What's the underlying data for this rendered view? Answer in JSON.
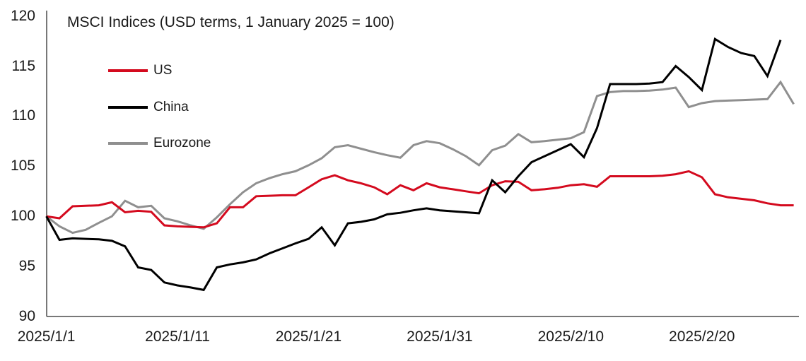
{
  "chart_data": {
    "type": "line",
    "title": "MSCI Indices (USD terms, 1 January 2025 = 100)",
    "grid": false,
    "legend_position": "inside-top-left",
    "background_color": "#ffffff",
    "text_color": "#191919",
    "axis_color": "#4c4c4c",
    "y_axis": {
      "min": 90,
      "max": 120,
      "step": 5,
      "ticks": [
        120,
        115,
        110,
        105,
        100,
        95,
        90
      ]
    },
    "x_axis": {
      "tick_labels": [
        "2025/1/1",
        "2025/1/11",
        "2025/1/21",
        "2025/1/31",
        "2025/2/10",
        "2025/2/20"
      ],
      "tick_point_index": [
        0,
        10,
        20,
        30,
        40,
        50
      ],
      "start": "2025/1/1",
      "end": "2025/2/27"
    },
    "dates": [
      "2025/1/1",
      "2025/1/2",
      "2025/1/3",
      "2025/1/4",
      "2025/1/5",
      "2025/1/6",
      "2025/1/7",
      "2025/1/8",
      "2025/1/9",
      "2025/1/10",
      "2025/1/11",
      "2025/1/12",
      "2025/1/13",
      "2025/1/14",
      "2025/1/15",
      "2025/1/16",
      "2025/1/17",
      "2025/1/18",
      "2025/1/19",
      "2025/1/20",
      "2025/1/21",
      "2025/1/22",
      "2025/1/23",
      "2025/1/24",
      "2025/1/25",
      "2025/1/26",
      "2025/1/27",
      "2025/1/28",
      "2025/1/29",
      "2025/1/30",
      "2025/1/31",
      "2025/2/1",
      "2025/2/2",
      "2025/2/3",
      "2025/2/4",
      "2025/2/5",
      "2025/2/6",
      "2025/2/7",
      "2025/2/8",
      "2025/2/9",
      "2025/2/10",
      "2025/2/11",
      "2025/2/12",
      "2025/2/13",
      "2025/2/14",
      "2025/2/15",
      "2025/2/16",
      "2025/2/17",
      "2025/2/18",
      "2025/2/19",
      "2025/2/20",
      "2025/2/21",
      "2025/2/22",
      "2025/2/23",
      "2025/2/24",
      "2025/2/25",
      "2025/2/26",
      "2025/2/27"
    ],
    "series": [
      {
        "name": "US",
        "color": "#d40a1e",
        "values": [
          100,
          99.8,
          101.0,
          101.05,
          101.1,
          101.4,
          100.4,
          100.55,
          100.45,
          99.1,
          99.0,
          98.95,
          98.9,
          99.3,
          100.9,
          100.9,
          102.0,
          102.05,
          102.1,
          102.1,
          102.9,
          103.7,
          104.1,
          103.6,
          103.3,
          102.9,
          102.2,
          103.1,
          102.6,
          103.3,
          102.9,
          102.7,
          102.5,
          102.3,
          103.1,
          103.5,
          103.45,
          102.6,
          102.7,
          102.85,
          103.1,
          103.2,
          102.95,
          104.0,
          104.0,
          104.0,
          104.0,
          104.05,
          104.2,
          104.5,
          103.9,
          102.2,
          101.9,
          101.75,
          101.6,
          101.3,
          101.1,
          101.1
        ]
      },
      {
        "name": "China",
        "color": "#000000",
        "values": [
          100,
          97.65,
          97.8,
          97.75,
          97.7,
          97.55,
          97.0,
          94.9,
          94.65,
          93.4,
          93.1,
          92.9,
          92.65,
          94.9,
          95.2,
          95.4,
          95.7,
          96.3,
          96.8,
          97.3,
          97.75,
          98.9,
          97.1,
          99.3,
          99.45,
          99.7,
          100.2,
          100.35,
          100.6,
          100.8,
          100.6,
          100.5,
          100.4,
          100.3,
          103.6,
          102.4,
          104.0,
          105.4,
          106.0,
          106.6,
          107.2,
          105.9,
          108.8,
          113.2,
          113.2,
          113.2,
          113.25,
          113.4,
          115.0,
          113.9,
          112.6,
          117.7,
          116.9,
          116.3,
          116.0,
          114.0,
          117.6,
          null
        ]
      },
      {
        "name": "Eurozone",
        "color": "#8f8f8f",
        "values": [
          100,
          99.0,
          98.35,
          98.65,
          99.35,
          100.0,
          101.55,
          100.9,
          101.05,
          99.8,
          99.5,
          99.1,
          98.75,
          99.9,
          101.2,
          102.4,
          103.3,
          103.8,
          104.2,
          104.5,
          105.1,
          105.8,
          106.9,
          107.1,
          106.75,
          106.4,
          106.1,
          105.85,
          107.1,
          107.5,
          107.3,
          106.7,
          106.0,
          105.1,
          106.6,
          107.05,
          108.2,
          107.4,
          107.5,
          107.65,
          107.8,
          108.4,
          112.0,
          112.4,
          112.5,
          112.5,
          112.55,
          112.65,
          112.85,
          110.9,
          111.3,
          111.5,
          111.55,
          111.6,
          111.65,
          111.7,
          113.4,
          111.2
        ]
      }
    ]
  }
}
